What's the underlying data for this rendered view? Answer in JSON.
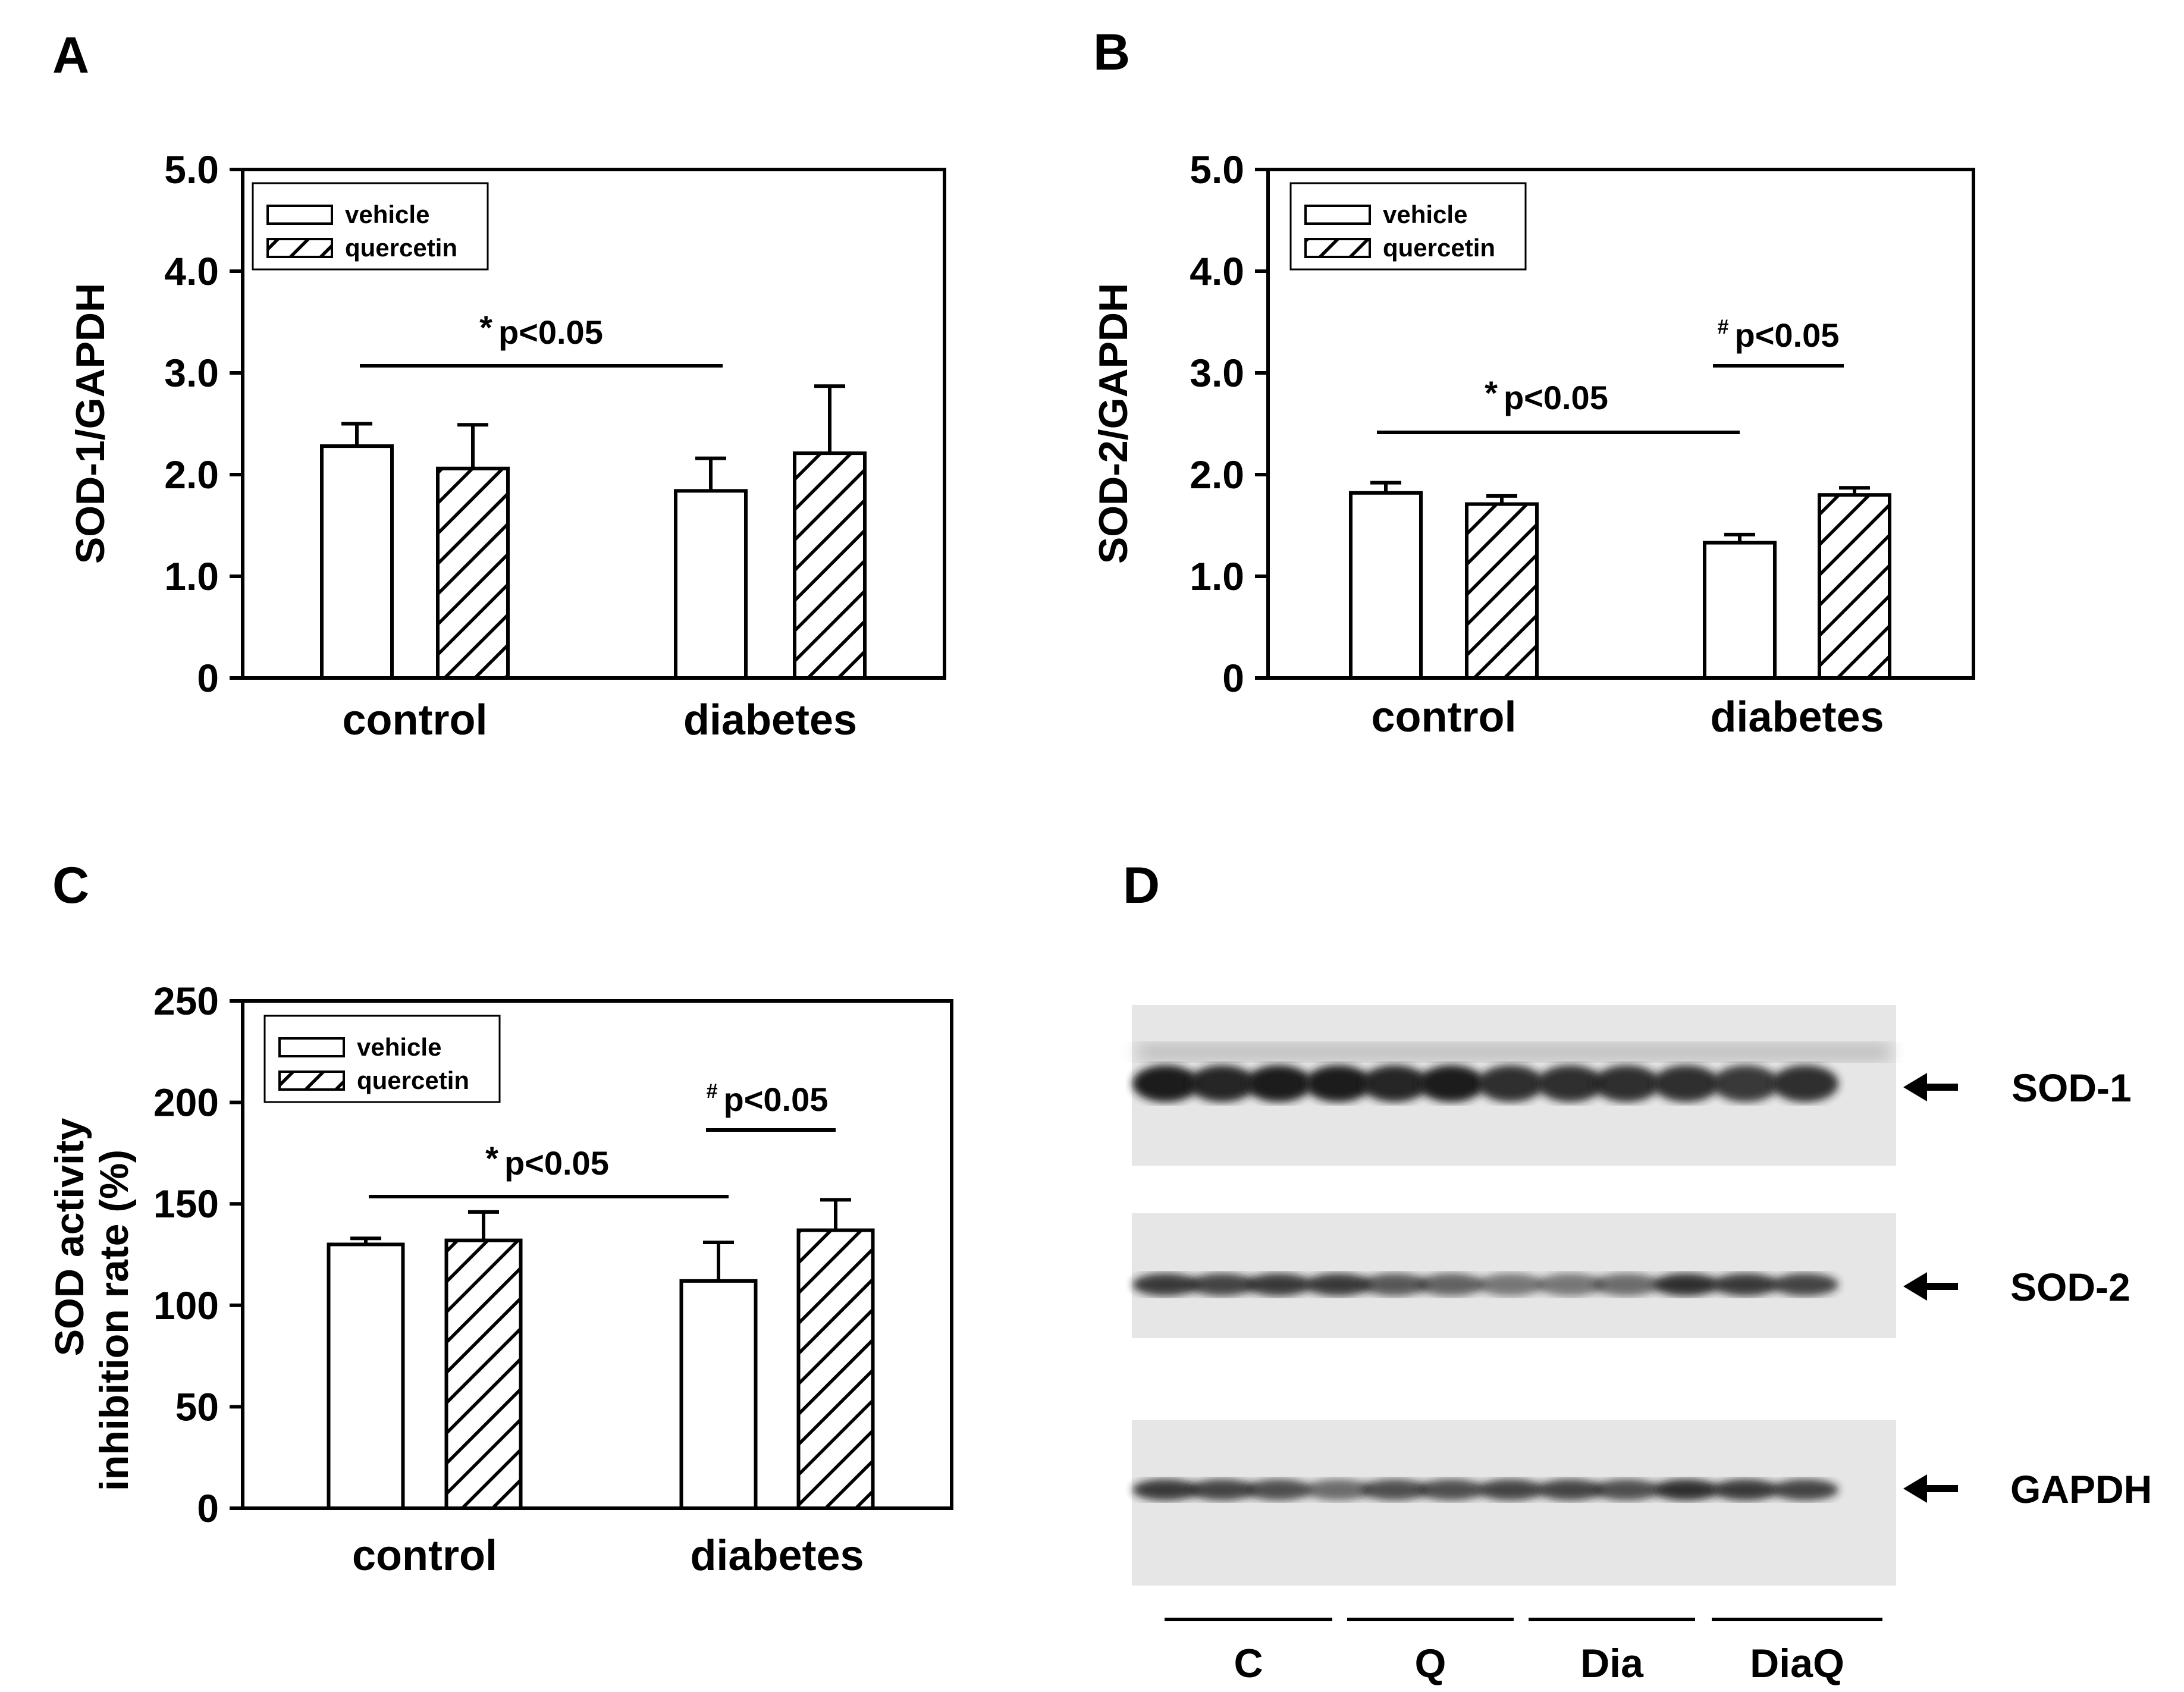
{
  "panels": {
    "A": {
      "label": "A"
    },
    "B": {
      "label": "B"
    },
    "C": {
      "label": "C"
    },
    "D": {
      "label": "D"
    }
  },
  "legend": {
    "vehicle": "vehicle",
    "quercetin": "quercetin"
  },
  "chart_data": [
    {
      "panel": "A",
      "type": "bar",
      "categories": [
        "control",
        "diabetes"
      ],
      "series": [
        {
          "name": "vehicle",
          "values": [
            2.28,
            1.84
          ],
          "errors": [
            0.22,
            0.32
          ]
        },
        {
          "name": "quercetin",
          "values": [
            2.06,
            2.21
          ],
          "errors": [
            0.43,
            0.66
          ]
        }
      ],
      "ylabel": "SOD-1/GAPDH",
      "ylim": [
        0,
        5.0
      ],
      "yticks": [
        "0",
        "1.0",
        "2.0",
        "3.0",
        "4.0",
        "5.0"
      ],
      "annotations": [
        {
          "symbol": "*",
          "text": "p<0.05",
          "compare": [
            "control vehicle",
            "diabetes vehicle"
          ]
        }
      ]
    },
    {
      "panel": "B",
      "type": "bar",
      "categories": [
        "control",
        "diabetes"
      ],
      "series": [
        {
          "name": "vehicle",
          "values": [
            1.82,
            1.33
          ],
          "errors": [
            0.1,
            0.08
          ]
        },
        {
          "name": "quercetin",
          "values": [
            1.71,
            1.8
          ],
          "errors": [
            0.08,
            0.07
          ]
        }
      ],
      "ylabel": "SOD-2/GAPDH",
      "ylim": [
        0,
        5.0
      ],
      "yticks": [
        "0",
        "1.0",
        "2.0",
        "3.0",
        "4.0",
        "5.0"
      ],
      "annotations": [
        {
          "symbol": "*",
          "text": "p<0.05",
          "compare": [
            "control vehicle",
            "diabetes vehicle"
          ]
        },
        {
          "symbol": "#",
          "text": "p<0.05",
          "compare": [
            "diabetes vehicle",
            "diabetes quercetin"
          ]
        }
      ]
    },
    {
      "panel": "C",
      "type": "bar",
      "categories": [
        "control",
        "diabetes"
      ],
      "series": [
        {
          "name": "vehicle",
          "values": [
            130,
            112
          ],
          "errors": [
            3,
            19
          ]
        },
        {
          "name": "quercetin",
          "values": [
            132,
            137
          ],
          "errors": [
            14,
            15
          ]
        }
      ],
      "ylabel_lines": [
        "SOD activity",
        "inhibition rate (%)"
      ],
      "ylim": [
        0,
        250
      ],
      "yticks": [
        "0",
        "50",
        "100",
        "150",
        "200",
        "250"
      ],
      "annotations": [
        {
          "symbol": "*",
          "text": "p<0.05",
          "compare": [
            "control vehicle",
            "diabetes vehicle"
          ]
        },
        {
          "symbol": "#",
          "text": "p<0.05",
          "compare": [
            "diabetes vehicle",
            "diabetes quercetin"
          ]
        }
      ]
    }
  ],
  "blot": {
    "proteins": [
      "SOD-1",
      "SOD-2",
      "GAPDH"
    ],
    "lanes": [
      "C",
      "Q",
      "Dia",
      "DiaQ"
    ]
  },
  "colors": {
    "ink": "#000000",
    "bar_fill": "#ffffff",
    "blot_bg": "#e4e4e4",
    "band": "#1a1a1a"
  }
}
